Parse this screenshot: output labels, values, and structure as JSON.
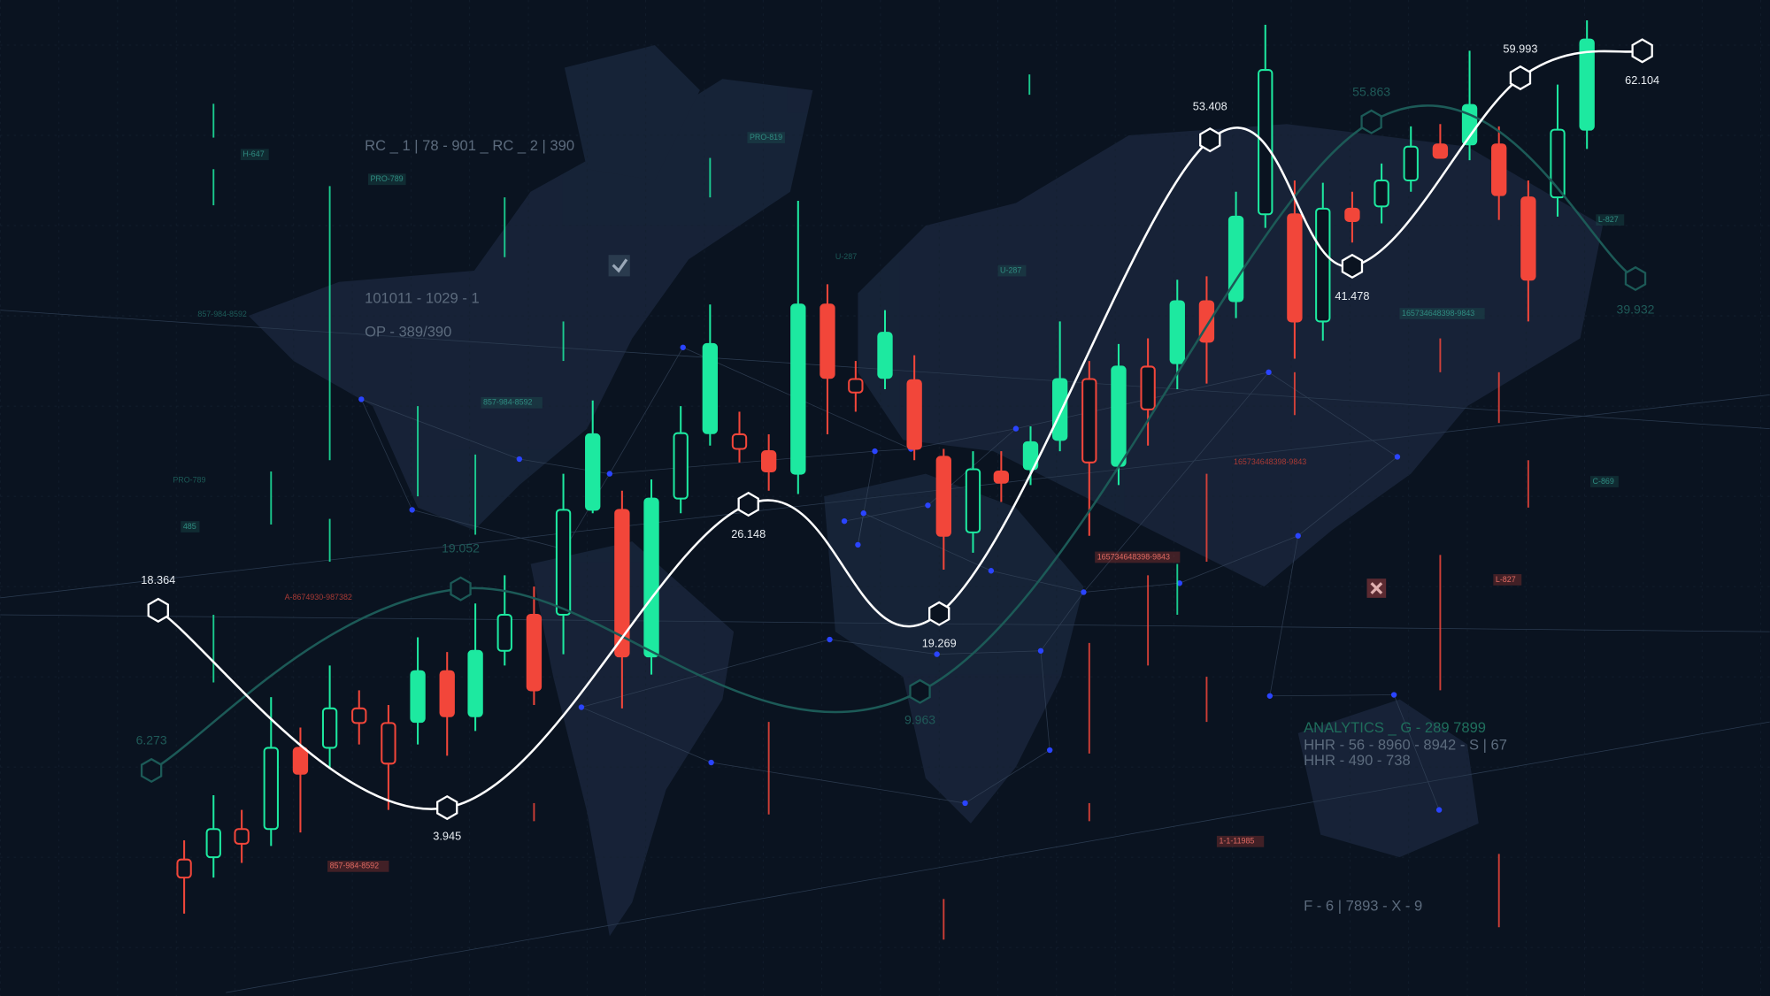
{
  "panel_texts": {
    "code_line": "RC _ 1 | 78 - 901 _ RC _ 2 | 390",
    "binary_line": "101011 - 1029 - 1",
    "op_line": "OP - 389/390"
  },
  "analytics": {
    "line1": "ANALYTICS _ G - 289 7899",
    "line2": "HHR - 56 - 8960 - 8942 - S | 67",
    "line3": "HHR - 490 - 738",
    "footer": "F - 6 | 7893 - X - 9"
  },
  "tags": [
    "H-647",
    "PRO-789",
    "PRO-819",
    "U-287",
    "U-287",
    "857-984-8592",
    "857-984-8592",
    "857-984-8592",
    "PRO-789",
    "485",
    "A-8674930-987382",
    "165734648398-9843",
    "165734648398-9843",
    "165734648398-9843",
    "L-827",
    "L-827",
    "C-869",
    "1-1-11985"
  ],
  "main_line_labels": [
    "18.364",
    "3.945",
    "26.148",
    "19.269",
    "53.408",
    "41.478",
    "59.993",
    "62.104"
  ],
  "secondary_line_labels": [
    "6.273",
    "19.052",
    "9.963",
    "55.863",
    "39.932"
  ]
}
